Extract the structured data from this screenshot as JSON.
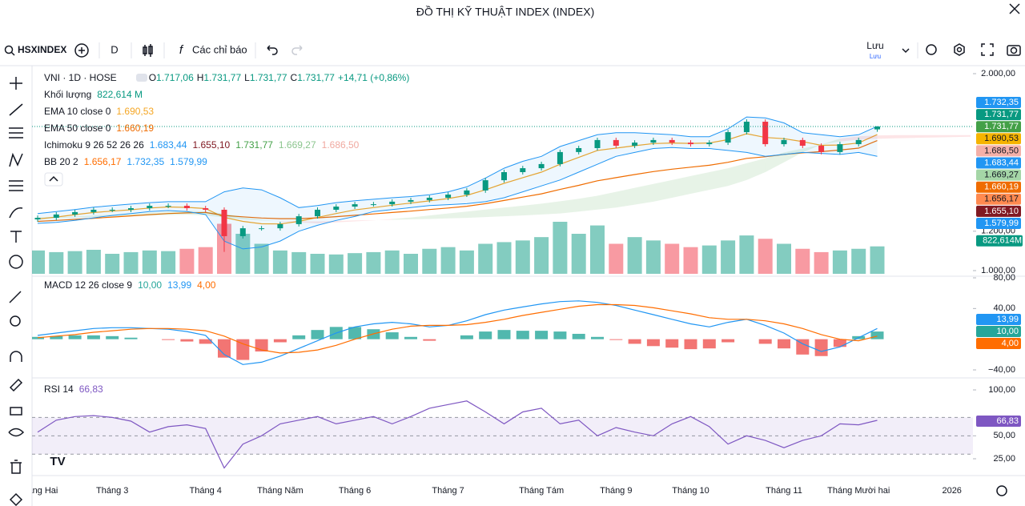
{
  "header": {
    "title": "ĐỒ THỊ KỸ THUẬT INDEX (INDEX)"
  },
  "toolbar": {
    "symbol": "HSXINDEX",
    "interval": "D",
    "indicators": "Các chỉ báo",
    "save": "Lưu",
    "save_sub": "Lưu"
  },
  "chart_data": [
    {
      "type": "candlestick",
      "title": "VNI · 1D · HOSE",
      "ohlc": [
        {
          "label": "O",
          "value": "1.717,06"
        },
        {
          "label": "H",
          "value": "1.731,77"
        },
        {
          "label": "L",
          "value": "1.731,77"
        },
        {
          "label": "C",
          "value": "1.731,77"
        }
      ],
      "change": "+14,71 (+0,86%)",
      "categories": [
        "Tháng Hai",
        null,
        null,
        null,
        "Tháng 3",
        null,
        null,
        null,
        null,
        "Tháng 4",
        null,
        null,
        null,
        "Tháng Năm",
        null,
        null,
        null,
        "Tháng 6",
        null,
        null,
        null,
        null,
        "Tháng 7",
        null,
        null,
        null,
        null,
        "Tháng Tám",
        null,
        null,
        null,
        "Tháng 9",
        null,
        null,
        null,
        "Tháng 10",
        null,
        null,
        null,
        null,
        "Tháng 11",
        null,
        null,
        null,
        "Tháng Mười hai",
        null,
        null,
        null,
        null,
        "2026",
        null
      ],
      "open": [
        1260,
        1268,
        1285,
        1297,
        1309,
        1309,
        1317,
        1329,
        1329,
        1317,
        1309,
        1175,
        1215,
        1215,
        1236,
        1276,
        1309,
        1325,
        1337,
        1337,
        1350,
        1358,
        1370,
        1386,
        1407,
        1459,
        1500,
        1520,
        1541,
        1602,
        1622,
        1663,
        1634,
        1650,
        1663,
        1650,
        1642,
        1650,
        1703,
        1756,
        1642,
        1663,
        1634,
        1602,
        1642,
        1717.06,
        null,
        null,
        null,
        null,
        null
      ],
      "high": [
        1280,
        1297,
        1309,
        1321,
        1321,
        1329,
        1341,
        1341,
        1341,
        1329,
        1321,
        1227,
        1227,
        1248,
        1288,
        1321,
        1337,
        1349,
        1349,
        1362,
        1370,
        1382,
        1398,
        1419,
        1471,
        1512,
        1532,
        1553,
        1614,
        1634,
        1675,
        1675,
        1662,
        1675,
        1675,
        1662,
        1662,
        1715,
        1768,
        1768,
        1675,
        1675,
        1646,
        1654,
        1675,
        1731.77,
        null,
        null,
        null,
        null,
        null
      ],
      "low": [
        1248,
        1256,
        1273,
        1285,
        1297,
        1297,
        1305,
        1317,
        1305,
        1297,
        1095,
        1163,
        1203,
        1203,
        1224,
        1264,
        1297,
        1313,
        1325,
        1325,
        1338,
        1346,
        1358,
        1374,
        1395,
        1447,
        1488,
        1508,
        1529,
        1590,
        1610,
        1622,
        1622,
        1638,
        1638,
        1630,
        1630,
        1638,
        1691,
        1630,
        1630,
        1622,
        1590,
        1590,
        1630,
        1705,
        null,
        null,
        null,
        null,
        null
      ],
      "close": [
        1268,
        1285,
        1297,
        1309,
        1309,
        1317,
        1329,
        1329,
        1317,
        1309,
        1175,
        1215,
        1215,
        1236,
        1276,
        1309,
        1325,
        1337,
        1337,
        1350,
        1358,
        1370,
        1386,
        1407,
        1459,
        1500,
        1520,
        1541,
        1602,
        1622,
        1663,
        1634,
        1650,
        1663,
        1650,
        1642,
        1650,
        1703,
        1756,
        1642,
        1663,
        1634,
        1602,
        1642,
        1663,
        1731.77,
        null,
        null,
        null,
        null,
        null
      ],
      "up_color": "#089981",
      "down_color": "#f23645",
      "ylim": [
        1000,
        2000
      ],
      "yticks": [
        {
          "value": 1000,
          "label": "1.000,00"
        },
        {
          "value": 1200,
          "label": "1.200,00"
        },
        {
          "value": 2000,
          "label": "2.000,00"
        }
      ],
      "y2lim": [
        0,
        6000
      ],
      "series": [
        {
          "name": "Khối lượng",
          "type": "volume",
          "axis": "y2",
          "values": [
            700,
            650,
            680,
            720,
            600,
            650,
            700,
            680,
            750,
            800,
            1500,
            1200,
            900,
            700,
            650,
            600,
            580,
            620,
            650,
            700,
            600,
            750,
            800,
            700,
            900,
            950,
            1000,
            1100,
            1560,
            1200,
            1450,
            900,
            1100,
            1000,
            900,
            800,
            850,
            1000,
            1150,
            1050,
            900,
            750,
            650,
            700,
            750,
            822.614,
            null,
            null,
            null,
            null,
            null
          ],
          "legend_values": [
            "822,614 M"
          ],
          "legend_colors": [
            "#089981"
          ],
          "badge": "822,614M",
          "color": "#089981"
        },
        {
          "name": "EMA 10 close 0",
          "type": "line",
          "color": "#f5a623",
          "values": [
            1262,
            1272,
            1284,
            1295,
            1302,
            1309,
            1318,
            1323,
            1321,
            1315,
            1270,
            1250,
            1238,
            1237,
            1250,
            1270,
            1290,
            1308,
            1320,
            1332,
            1343,
            1354,
            1366,
            1382,
            1410,
            1443,
            1472,
            1500,
            1540,
            1575,
            1610,
            1622,
            1634,
            1645,
            1648,
            1646,
            1648,
            1665,
            1695,
            1676,
            1670,
            1655,
            1636,
            1638,
            1648,
            1690.53,
            null,
            null,
            null,
            null,
            null
          ],
          "legend_values": [
            "1.690,53"
          ],
          "legend_colors": [
            "#f5a623"
          ]
        },
        {
          "name": "EMA 50 close 0",
          "type": "line",
          "color": "#ef6c00",
          "values": [
            1250,
            1255,
            1260,
            1266,
            1272,
            1278,
            1284,
            1290,
            1293,
            1295,
            1280,
            1273,
            1267,
            1264,
            1264,
            1268,
            1274,
            1281,
            1288,
            1295,
            1302,
            1310,
            1318,
            1327,
            1340,
            1356,
            1373,
            1390,
            1412,
            1433,
            1456,
            1472,
            1488,
            1503,
            1515,
            1525,
            1535,
            1550,
            1570,
            1578,
            1590,
            1598,
            1604,
            1612,
            1622,
            1660.19,
            null,
            null,
            null,
            null,
            null
          ],
          "legend_values": [
            "1.660,19"
          ],
          "legend_colors": [
            "#ef6c00"
          ]
        },
        {
          "name": "Ichimoku 9 26 52 26 26",
          "type": "cloud",
          "span_a": [
            1270,
            1272,
            1275,
            1280,
            1285,
            1290,
            1295,
            1300,
            1305,
            1300,
            1290,
            1270,
            1260,
            1250,
            1245,
            1240,
            1245,
            1250,
            1255,
            1262,
            1270,
            1280,
            1290,
            1300,
            1310,
            1320,
            1330,
            1340,
            1352,
            1365,
            1380,
            1400,
            1420,
            1440,
            1460,
            1480,
            1500,
            1520,
            1545,
            1570,
            1600,
            1620,
            1640,
            1655,
            1665,
            1669.27,
            1672,
            1674,
            1676,
            1678,
            1680
          ],
          "span_b": [
            1265,
            1268,
            1270,
            1272,
            1275,
            1278,
            1280,
            1282,
            1284,
            1280,
            1270,
            1260,
            1255,
            1252,
            1250,
            1250,
            1252,
            1255,
            1256,
            1258,
            1260,
            1262,
            1265,
            1268,
            1272,
            1276,
            1280,
            1285,
            1290,
            1300,
            1310,
            1320,
            1335,
            1350,
            1370,
            1390,
            1410,
            1430,
            1460,
            1500,
            1550,
            1600,
            1640,
            1670,
            1682,
            1686.5,
            1688,
            1688,
            1688,
            1688,
            1688
          ],
          "color_a": "#43a047",
          "color_b": "#f23645",
          "legend_values": [
            "1.683,44",
            "1.655,10",
            "1.731,77",
            "1.669,27",
            "1.686,50"
          ],
          "legend_colors": [
            "#2196f3",
            "#801922",
            "#43a047",
            "#8bc58e",
            "#f0a9a0"
          ]
        },
        {
          "name": "BB 20 2",
          "type": "band",
          "color": "#2196f3",
          "upper": [
            1290,
            1300,
            1310,
            1322,
            1330,
            1338,
            1345,
            1350,
            1350,
            1350,
            1400,
            1420,
            1410,
            1370,
            1320,
            1330,
            1345,
            1355,
            1362,
            1370,
            1376,
            1385,
            1400,
            1425,
            1470,
            1520,
            1555,
            1580,
            1630,
            1660,
            1690,
            1700,
            1700,
            1695,
            1690,
            1680,
            1680,
            1720,
            1780,
            1775,
            1750,
            1700,
            1690,
            1680,
            1690,
            1732.35,
            null,
            null,
            null,
            null,
            null
          ],
          "lower": [
            1240,
            1245,
            1255,
            1268,
            1280,
            1290,
            1300,
            1305,
            1300,
            1285,
            1150,
            1110,
            1120,
            1150,
            1200,
            1230,
            1255,
            1275,
            1300,
            1310,
            1320,
            1330,
            1335,
            1340,
            1350,
            1370,
            1400,
            1430,
            1460,
            1500,
            1540,
            1580,
            1600,
            1620,
            1625,
            1620,
            1620,
            1610,
            1600,
            1580,
            1590,
            1600,
            1595,
            1590,
            1600,
            1579.99,
            null,
            null,
            null,
            null,
            null
          ],
          "legend_values": [
            "1.656,17",
            "1.732,35",
            "1.579,99"
          ],
          "legend_colors": [
            "#ff6d00",
            "#2196f3",
            "#2196f3"
          ]
        }
      ],
      "price_labels": [
        {
          "text": "1.732,35",
          "color": "#2196f3"
        },
        {
          "text": "1.731,77",
          "color": "#089981"
        },
        {
          "text": "1.731,77",
          "color": "#43a047"
        },
        {
          "text": "1.690,53",
          "color": "#f5b400"
        },
        {
          "text": "1.686,50",
          "color": "#f4b0a8"
        },
        {
          "text": "1.683,44",
          "color": "#2196f3"
        },
        {
          "text": "1.669,27",
          "color": "#a5d6a7"
        },
        {
          "text": "1.660,19",
          "color": "#ef6c00"
        },
        {
          "text": "1.656,17",
          "color": "#ff8a50"
        },
        {
          "text": "1.655,10",
          "color": "#801922"
        },
        {
          "text": "1.579,99",
          "color": "#2196f3"
        }
      ]
    },
    {
      "type": "macd",
      "title": "MACD 12 26 close 9",
      "legend_values": [
        "10,00",
        "13,99",
        "4,00"
      ],
      "legend_colors": [
        "#26a69a",
        "#2196f3",
        "#ff6d00"
      ],
      "ylim": [
        -40,
        80
      ],
      "yticks": [
        {
          "value": -40,
          "label": "−40,00"
        },
        {
          "value": 40,
          "label": "40,00"
        },
        {
          "value": 80,
          "label": "80,00"
        }
      ],
      "histogram": {
        "values": [
          3,
          4,
          5,
          5,
          4,
          2,
          0,
          -1,
          -3,
          -6,
          -24,
          -27,
          -16,
          -4,
          5,
          12,
          16,
          16,
          13,
          9,
          3,
          -2,
          0,
          5,
          10,
          12,
          11,
          11,
          10,
          7,
          3,
          -1,
          -6,
          -9,
          -11,
          -13,
          -12,
          -4,
          0,
          -6,
          -12,
          -20,
          -22,
          -10,
          4,
          10,
          null,
          null,
          null,
          null,
          null
        ],
        "up_color": "#26a69a",
        "down_color": "#ef5350"
      },
      "series": [
        {
          "name": "MACD",
          "color": "#2196f3",
          "values": [
            5,
            8,
            11,
            14,
            15,
            15,
            14,
            13,
            10,
            5,
            -20,
            -33,
            -30,
            -22,
            -12,
            -2,
            8,
            16,
            20,
            22,
            20,
            16,
            18,
            24,
            32,
            38,
            42,
            46,
            49,
            50,
            48,
            44,
            38,
            32,
            26,
            20,
            16,
            22,
            26,
            18,
            8,
            -6,
            -16,
            -10,
            2,
            13.99,
            null,
            null,
            null,
            null,
            null
          ]
        },
        {
          "name": "Signal",
          "color": "#ff6d00",
          "values": [
            2,
            4,
            6,
            9,
            11,
            13,
            14,
            14,
            13,
            11,
            4,
            -6,
            -14,
            -18,
            -17,
            -14,
            -8,
            0,
            7,
            13,
            17,
            18,
            18,
            19,
            22,
            26,
            31,
            35,
            39,
            43,
            45,
            45,
            44,
            41,
            37,
            33,
            28,
            26,
            26,
            24,
            20,
            14,
            6,
            0,
            -2,
            4,
            null,
            null,
            null,
            null,
            null
          ]
        }
      ],
      "price_labels": [
        {
          "text": "13,99",
          "color": "#2196f3"
        },
        {
          "text": "10,00",
          "color": "#26a69a"
        },
        {
          "text": "4,00",
          "color": "#ff6d00"
        }
      ]
    },
    {
      "type": "line",
      "title": "RSI 14",
      "legend_values": [
        "66,83"
      ],
      "legend_colors": [
        "#7e57c2"
      ],
      "color": "#7e57c2",
      "values": [
        54,
        67,
        71,
        72,
        70,
        66,
        54,
        60,
        62,
        58,
        15,
        41,
        50,
        63,
        67,
        71,
        63,
        67,
        71,
        63,
        71,
        80,
        84,
        88,
        76,
        63,
        76,
        80,
        63,
        67,
        50,
        59,
        54,
        50,
        63,
        71,
        60,
        41,
        50,
        45,
        37,
        45,
        50,
        63,
        62,
        66.83,
        null,
        null,
        null,
        null,
        null
      ],
      "ylim": [
        25,
        100
      ],
      "yticks": [
        {
          "value": 25,
          "label": "25,00"
        },
        {
          "value": 50,
          "label": "50,00"
        },
        {
          "value": 100,
          "label": "100,00"
        }
      ],
      "levels": [
        70,
        50,
        30
      ],
      "band_color": "#7e57c2",
      "price_labels": [
        {
          "text": "66,83",
          "color": "#7e57c2"
        }
      ]
    }
  ]
}
